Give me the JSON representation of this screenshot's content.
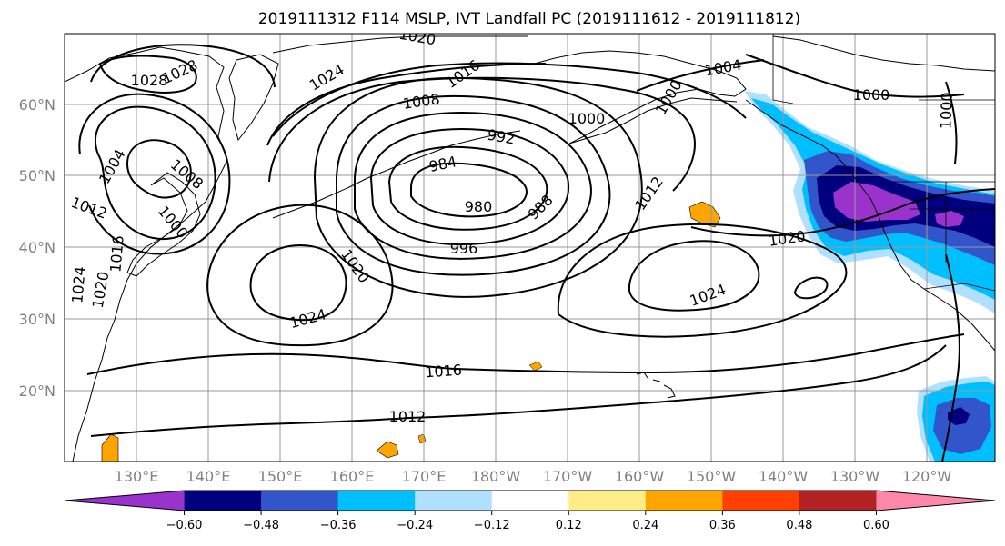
{
  "title": "2019111312 F114 MSLP, IVT Landfall PC (2019111612 - 2019111812)",
  "lat_labels": [
    "60°N",
    "50°N",
    "40°N",
    "30°N",
    "20°N"
  ],
  "lon_labels": [
    "130°E",
    "140°E",
    "150°E",
    "160°E",
    "170°E",
    "180°W",
    "170°W",
    "160°W",
    "150°W",
    "140°W",
    "130°W",
    "120°W"
  ],
  "colorbar": {
    "ticks": [
      "−0.60",
      "−0.48",
      "−0.36",
      "−0.24",
      "−0.12",
      "0.12",
      "0.24",
      "0.36",
      "0.48",
      "0.60"
    ],
    "colors": [
      "#9933cc",
      "#00007f",
      "#3355cc",
      "#00bfff",
      "#b0e0ff",
      "#ffffff",
      "#ffee88",
      "#ffa500",
      "#ff4000",
      "#b22222",
      "#ff88aa"
    ]
  },
  "isobar_labels": [
    {
      "text": "1020",
      "rot": 10
    },
    {
      "text": "1028",
      "rot": 0
    },
    {
      "text": "1028",
      "rot": -25
    },
    {
      "text": "1024",
      "rot": -30
    },
    {
      "text": "1016",
      "rot": -35
    },
    {
      "text": "1008",
      "rot": -8
    },
    {
      "text": "1004",
      "rot": -10
    },
    {
      "text": "1000",
      "rot": -60
    },
    {
      "text": "1000",
      "rot": 0
    },
    {
      "text": "1000",
      "rot": 0
    },
    {
      "text": "1000",
      "rot": -88
    },
    {
      "text": "992",
      "rot": 10
    },
    {
      "text": "984",
      "rot": -12
    },
    {
      "text": "980",
      "rot": 0
    },
    {
      "text": "988",
      "rot": -45
    },
    {
      "text": "996",
      "rot": 0
    },
    {
      "text": "1012",
      "rot": -55
    },
    {
      "text": "1020",
      "rot": -8
    },
    {
      "text": "1024",
      "rot": -20
    },
    {
      "text": "1020",
      "rot": 55
    },
    {
      "text": "1024",
      "rot": -15
    },
    {
      "text": "1016",
      "rot": -4
    },
    {
      "text": "1012",
      "rot": 0
    },
    {
      "text": "1004",
      "rot": -60
    },
    {
      "text": "1008",
      "rot": 40
    },
    {
      "text": "1000",
      "rot": 50
    },
    {
      "text": "1012",
      "rot": 20
    },
    {
      "text": "1024",
      "rot": -85
    },
    {
      "text": "1020",
      "rot": -80
    },
    {
      "text": "1016",
      "rot": -85
    }
  ]
}
